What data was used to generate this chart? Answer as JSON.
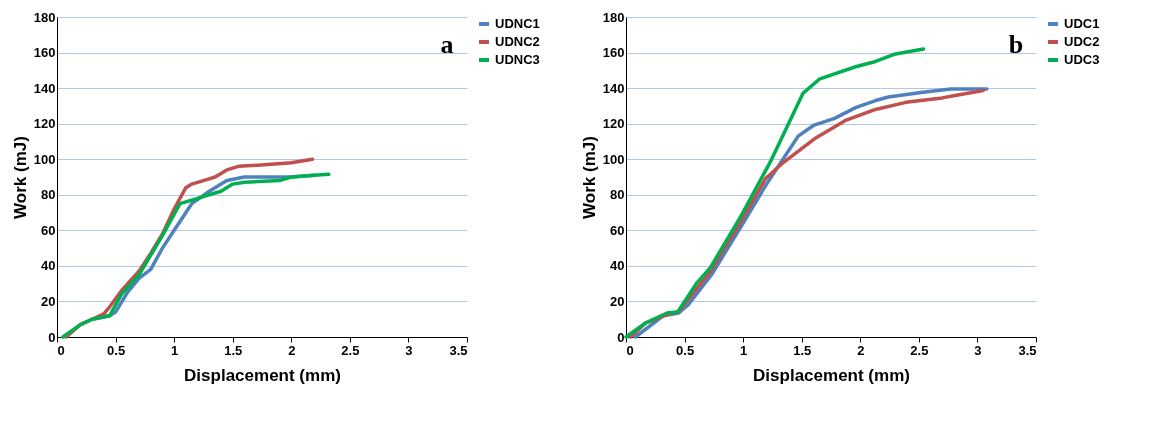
{
  "chart_data": [
    {
      "type": "line",
      "xlabel": "Displacement (mm)",
      "ylabel": "Work (mJ)",
      "annotations": [
        "a"
      ],
      "xlim": [
        0,
        3.5
      ],
      "xticks": [
        0,
        0.5,
        1,
        1.5,
        2,
        2.5,
        3,
        3.5
      ],
      "ylim": [
        0,
        180
      ],
      "yticks": [
        0,
        20,
        40,
        60,
        80,
        100,
        120,
        140,
        160,
        180
      ],
      "grid": "y",
      "legend": "right",
      "series": [
        {
          "name": "UDNC1",
          "color": "#4f81bd",
          "x": [
            0.3,
            0.45,
            0.5,
            0.6,
            0.7,
            0.8,
            0.9,
            1.0,
            1.05,
            1.15,
            1.3,
            1.45,
            1.6,
            2.0,
            2.2
          ],
          "values": [
            10,
            12,
            14,
            25,
            33,
            38,
            50,
            60,
            65,
            75,
            82,
            88,
            90,
            90,
            91
          ]
        },
        {
          "name": "UDNC2",
          "color": "#c0504d",
          "x": [
            0.08,
            0.2,
            0.3,
            0.4,
            0.45,
            0.55,
            0.7,
            0.8,
            0.9,
            1.0,
            1.1,
            1.15,
            1.25,
            1.35,
            1.45,
            1.55,
            1.8,
            2.0,
            2.18
          ],
          "values": [
            0,
            7,
            10,
            13,
            17,
            26,
            37,
            47,
            58,
            72,
            84,
            86,
            88,
            90,
            94,
            96,
            97,
            98,
            100
          ]
        },
        {
          "name": "UDNC3",
          "color": "#00b050",
          "x": [
            0.05,
            0.2,
            0.3,
            0.45,
            0.55,
            0.7,
            0.8,
            0.9,
            1.05,
            1.2,
            1.3,
            1.4,
            1.5,
            1.6,
            1.9,
            2.0,
            2.2,
            2.32
          ],
          "values": [
            0,
            7,
            10,
            12,
            24,
            35,
            46,
            57,
            75,
            78,
            80,
            82,
            86,
            87,
            88,
            90,
            91,
            91.5
          ]
        }
      ]
    },
    {
      "type": "line",
      "xlabel": "Displacement (mm)",
      "ylabel": "Work (mJ)",
      "annotations": [
        "b"
      ],
      "xlim": [
        0,
        3.5
      ],
      "xticks": [
        0,
        0.5,
        1,
        1.5,
        2,
        2.5,
        3,
        3.5
      ],
      "ylim": [
        0,
        180
      ],
      "yticks": [
        0,
        20,
        40,
        60,
        80,
        100,
        120,
        140,
        160,
        180
      ],
      "grid": "y",
      "legend": "right",
      "series": [
        {
          "name": "UDC1",
          "color": "#4f81bd",
          "x": [
            0.08,
            0.32,
            0.45,
            0.53,
            0.73,
            0.99,
            1.19,
            1.34,
            1.47,
            1.6,
            1.78,
            1.96,
            2.13,
            2.24,
            2.52,
            2.77,
            3.08
          ],
          "values": [
            0,
            12,
            13.5,
            18,
            35,
            63,
            85,
            100,
            113,
            119,
            123,
            129,
            133,
            135,
            137.5,
            139.5,
            139.5
          ]
        },
        {
          "name": "UDC2",
          "color": "#c0504d",
          "x": [
            0.04,
            0.17,
            0.35,
            0.45,
            0.71,
            0.99,
            1.19,
            1.34,
            1.62,
            1.88,
            2.13,
            2.39,
            2.7,
            2.82,
            3.05
          ],
          "values": [
            0,
            8,
            12.6,
            14.4,
            36,
            66,
            89,
            98,
            112,
            122,
            128,
            132,
            134.5,
            136,
            138.6
          ]
        },
        {
          "name": "UDC3",
          "color": "#00b050",
          "x": [
            0,
            0.17,
            0.35,
            0.44,
            0.6,
            0.72,
            0.99,
            1.24,
            1.51,
            1.65,
            1.78,
            1.96,
            2.13,
            2.29,
            2.54
          ],
          "values": [
            0,
            8,
            13.5,
            14,
            30,
            39,
            69,
            99.5,
            137,
            145,
            148,
            152,
            155,
            159,
            162
          ]
        }
      ]
    }
  ]
}
